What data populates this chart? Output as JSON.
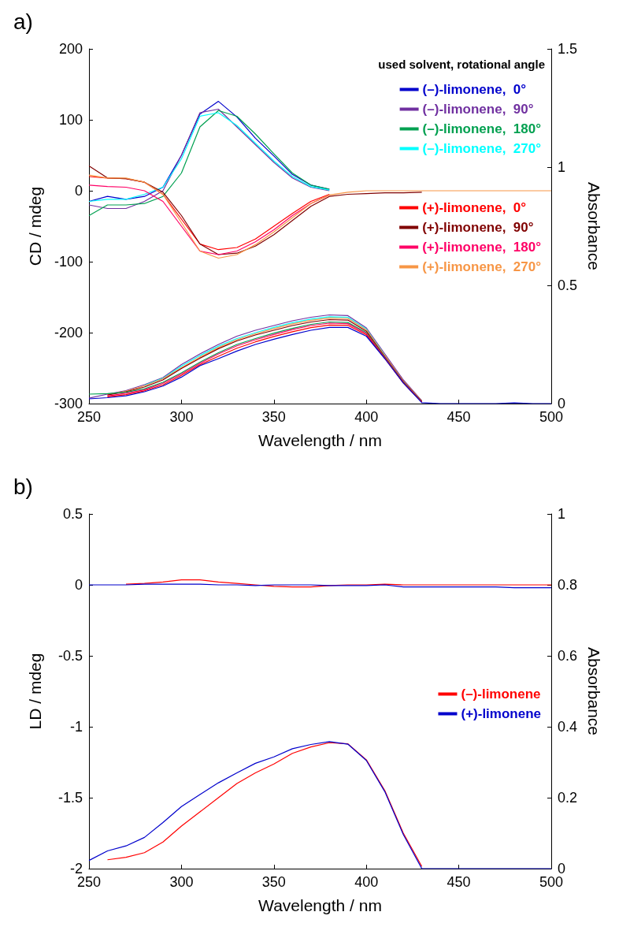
{
  "chart_data": [
    {
      "type": "line",
      "title": "a)",
      "xlabel": "Wavelength / nm",
      "ylabel": "CD / mdeg",
      "y2label": "Absorbance",
      "legend_title": "used solvent, rotational angle",
      "legend": "top right",
      "marker": "none",
      "grid": false,
      "x": [
        250,
        260,
        270,
        280,
        290,
        300,
        310,
        320,
        330,
        340,
        350,
        360,
        370,
        380,
        390,
        400,
        410,
        420,
        430,
        440,
        450,
        460,
        470,
        480,
        490,
        500
      ],
      "xlim": [
        250,
        500
      ],
      "xticks": [
        250,
        300,
        350,
        400,
        450,
        500
      ],
      "ylim": [
        -300,
        200
      ],
      "yticks": [
        -300,
        -200,
        -100,
        0,
        100,
        200
      ],
      "y2lim": [
        0,
        1.5
      ],
      "y2ticks": [
        0,
        0.5,
        1,
        1.5
      ],
      "series": [
        {
          "name": "(–)-limonene,  0°",
          "color": "#0000cc",
          "values": [
            -15,
            -8,
            -12,
            -8,
            5,
            50,
            108,
            126,
            104,
            74,
            49,
            23,
            8,
            2,
            null,
            null,
            null,
            null,
            null,
            null,
            null,
            null,
            null,
            null,
            null,
            null
          ]
        },
        {
          "name": "(–)-limonene,  90°",
          "color": "#7030a0",
          "values": [
            -20,
            -25,
            -25,
            -15,
            0,
            50,
            110,
            115,
            90,
            65,
            40,
            18,
            5,
            0,
            null,
            null,
            null,
            null,
            null,
            null,
            null,
            null,
            null,
            null,
            null,
            null
          ]
        },
        {
          "name": "(–)-limonene,  180°",
          "color": "#00a050",
          "values": [
            -35,
            -20,
            -20,
            -18,
            -8,
            25,
            90,
            113,
            105,
            80,
            52,
            25,
            8,
            2,
            null,
            null,
            null,
            null,
            null,
            null,
            null,
            null,
            null,
            null,
            null,
            null
          ]
        },
        {
          "name": "(–)-limonene,  270°",
          "color": "#00ffff",
          "values": [
            -15,
            -12,
            -12,
            -5,
            5,
            45,
            105,
            110,
            92,
            67,
            42,
            20,
            6,
            1,
            null,
            null,
            null,
            null,
            null,
            null,
            null,
            null,
            null,
            null,
            null,
            null
          ]
        },
        {
          "name": "(+)-limonene,  0°",
          "color": "#ff0000",
          "values": [
            20,
            18,
            17,
            12,
            -5,
            -40,
            -75,
            -83,
            -80,
            -68,
            -50,
            -32,
            -15,
            -5,
            null,
            null,
            null,
            null,
            null,
            null,
            null,
            null,
            null,
            null,
            null,
            null
          ]
        },
        {
          "name": "(+)-limonene,  90°",
          "color": "#800000",
          "values": [
            35,
            18,
            17,
            12,
            -2,
            -35,
            -75,
            -90,
            -88,
            -78,
            -62,
            -42,
            -22,
            -8,
            -5,
            -4,
            -3,
            -3,
            -2,
            null,
            null,
            null,
            null,
            null,
            null,
            null
          ]
        },
        {
          "name": "(+)-limonene,  180°",
          "color": "#ff0066",
          "values": [
            8,
            6,
            5,
            0,
            -15,
            -50,
            -85,
            -90,
            -85,
            -72,
            -55,
            -35,
            -18,
            -6,
            null,
            null,
            null,
            null,
            null,
            null,
            null,
            null,
            null,
            null,
            null,
            null
          ]
        },
        {
          "name": "(+)-limonene,  270°",
          "color": "#f79646",
          "values": [
            22,
            18,
            18,
            12,
            -5,
            -45,
            -85,
            -95,
            -90,
            -76,
            -58,
            -38,
            -18,
            -6,
            -2,
            0,
            0,
            0,
            0,
            0,
            0,
            0,
            0,
            0,
            0,
            0
          ]
        },
        {
          "axis": "y2",
          "color": "#7030a0",
          "values": [
            0.023,
            0.04,
            0.055,
            0.08,
            0.11,
            0.165,
            0.21,
            0.25,
            0.285,
            0.31,
            0.33,
            0.35,
            0.365,
            0.375,
            0.372,
            0.32,
            0.21,
            0.1,
            0.012,
            null,
            null,
            null,
            null,
            null,
            null,
            null
          ]
        },
        {
          "axis": "y2",
          "color": "#00ffff",
          "values": [
            null,
            null,
            null,
            0.077,
            0.107,
            0.158,
            0.203,
            0.243,
            0.275,
            0.3,
            0.322,
            0.342,
            0.357,
            0.367,
            0.365,
            0.315,
            0.205,
            null,
            null,
            null,
            null,
            null,
            null,
            null,
            null,
            null
          ]
        },
        {
          "axis": "y2",
          "color": "#f79646",
          "values": [
            null,
            0.038,
            0.052,
            0.075,
            0.105,
            0.152,
            0.197,
            0.237,
            0.27,
            0.295,
            0.317,
            0.337,
            0.352,
            0.362,
            0.36,
            0.312,
            0.203,
            0.095,
            0.01,
            null,
            null,
            null,
            null,
            null,
            null,
            null
          ]
        },
        {
          "axis": "y2",
          "color": "#800000",
          "values": [
            null,
            0.036,
            0.05,
            0.07,
            0.1,
            0.148,
            0.192,
            0.232,
            0.265,
            0.29,
            0.31,
            0.33,
            0.345,
            0.355,
            0.353,
            0.306,
            0.198,
            0.092,
            0.009,
            null,
            null,
            null,
            null,
            null,
            null,
            null
          ]
        },
        {
          "axis": "y2",
          "color": "#00a050",
          "values": [
            0.04,
            0.042,
            0.048,
            0.062,
            0.09,
            0.13,
            0.175,
            0.215,
            0.25,
            0.275,
            0.298,
            0.318,
            0.335,
            0.345,
            0.343,
            0.3,
            0.196,
            0.09,
            0.008,
            null,
            null,
            null,
            null,
            null,
            null,
            null
          ]
        },
        {
          "axis": "y2",
          "color": "#ff0066",
          "values": [
            null,
            0.032,
            0.044,
            0.058,
            0.086,
            0.125,
            0.17,
            0.21,
            0.244,
            0.27,
            0.292,
            0.313,
            0.33,
            0.34,
            0.338,
            0.296,
            0.194,
            0.089,
            0.007,
            null,
            null,
            null,
            null,
            null,
            null,
            null
          ]
        },
        {
          "axis": "y2",
          "color": "#ff0000",
          "values": [
            null,
            0.029,
            0.038,
            0.054,
            0.079,
            0.119,
            0.164,
            0.2,
            0.234,
            0.261,
            0.284,
            0.304,
            0.321,
            0.332,
            0.331,
            0.291,
            0.191,
            0.087,
            0.006,
            null,
            null,
            null,
            null,
            null,
            null,
            null
          ]
        },
        {
          "axis": "y2",
          "color": "#0000cc",
          "values": [
            0.02,
            0.025,
            0.033,
            0.05,
            0.074,
            0.112,
            0.16,
            0.19,
            0.222,
            0.25,
            0.272,
            0.292,
            0.31,
            0.322,
            0.322,
            0.285,
            0.19,
            0.087,
            0.004,
            0,
            0,
            0,
            0,
            0.003,
            0,
            0
          ]
        }
      ]
    },
    {
      "type": "line",
      "title": "b)",
      "xlabel": "Wavelength / nm",
      "ylabel": "LD / mdeg",
      "y2label": "Absorbance",
      "legend": "right",
      "marker": "none",
      "grid": false,
      "x": [
        250,
        260,
        270,
        280,
        290,
        300,
        310,
        320,
        330,
        340,
        350,
        360,
        370,
        380,
        390,
        400,
        410,
        420,
        430,
        440,
        450,
        460,
        470,
        480,
        490,
        500
      ],
      "xlim": [
        250,
        500
      ],
      "xticks": [
        250,
        300,
        350,
        400,
        450,
        500
      ],
      "ylim": [
        -2,
        0.5
      ],
      "yticks": [
        -2,
        -1.5,
        -1,
        -0.5,
        0,
        0.5
      ],
      "y2lim": [
        0,
        1
      ],
      "y2ticks": [
        0,
        0.2,
        0.4,
        0.6,
        0.8,
        1
      ],
      "series": [
        {
          "name": "(–)-limonene",
          "color": "#ff0000",
          "values": [
            null,
            null,
            0.005,
            0.01,
            0.02,
            0.035,
            0.035,
            0.02,
            0.01,
            0,
            -0.01,
            -0.015,
            -0.015,
            -0.005,
            0,
            0,
            0.005,
            0,
            0,
            0,
            0,
            0,
            0,
            0,
            0,
            0
          ]
        },
        {
          "name": "(+)-limonene",
          "color": "#0000cc",
          "values": [
            0,
            0,
            0,
            0.005,
            0.005,
            0.005,
            0.005,
            0,
            0,
            -0.005,
            0,
            0,
            0,
            -0.005,
            -0.005,
            -0.005,
            0,
            -0.015,
            -0.015,
            -0.015,
            -0.015,
            -0.015,
            -0.015,
            -0.02,
            -0.02,
            -0.02
          ]
        },
        {
          "axis": "y2",
          "color": "#ff0000",
          "values": [
            null,
            0.025,
            0.032,
            0.045,
            0.075,
            0.12,
            0.16,
            0.2,
            0.24,
            0.27,
            0.295,
            0.325,
            0.343,
            0.355,
            0.352,
            0.307,
            0.22,
            0.1,
            0.006,
            null,
            null,
            null,
            null,
            null,
            null,
            null
          ]
        },
        {
          "axis": "y2",
          "color": "#0000cc",
          "values": [
            0.023,
            0.05,
            0.064,
            0.088,
            0.13,
            0.175,
            0.209,
            0.242,
            0.27,
            0.297,
            0.315,
            0.338,
            0.35,
            0.358,
            0.351,
            0.305,
            0.217,
            0.096,
            0,
            0,
            0,
            0,
            0,
            0,
            0,
            0
          ]
        }
      ]
    }
  ]
}
